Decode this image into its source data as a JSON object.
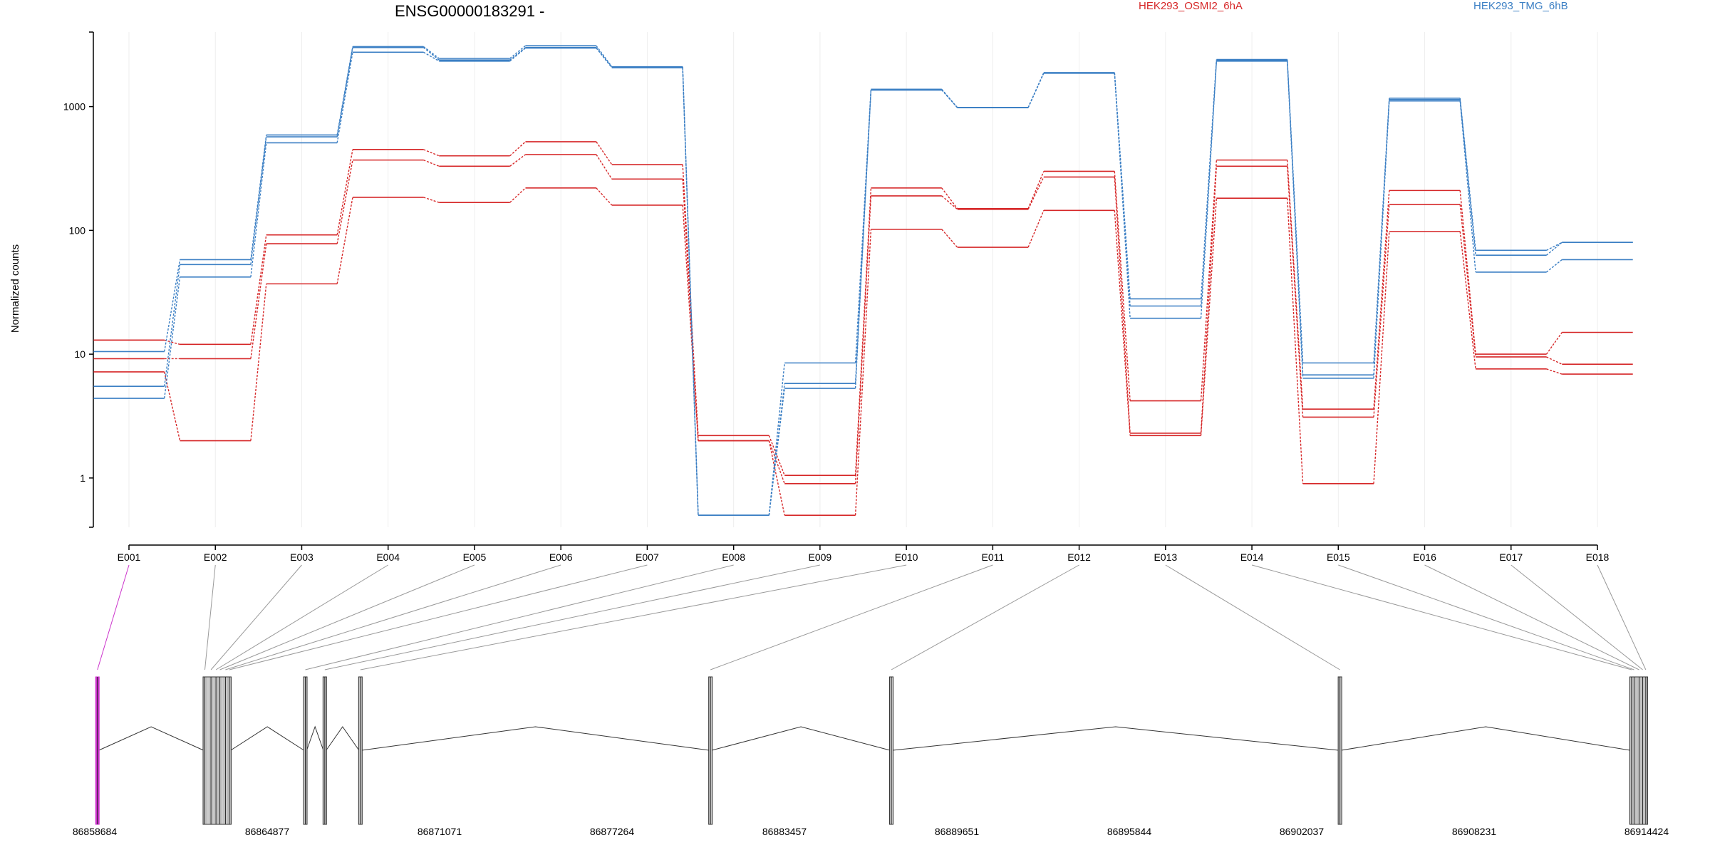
{
  "chart_data": {
    "type": "line",
    "title": "ENSG00000183291 -",
    "xlabel": "",
    "ylabel": "Normalized counts",
    "y_scale": "log",
    "ylim": [
      0.4,
      4000
    ],
    "y_ticks": [
      "1",
      "10",
      "100",
      "1000"
    ],
    "y_tick_values": [
      1,
      10,
      100,
      1000
    ],
    "grid": "vertical",
    "legend_placement": "top",
    "legend": [
      {
        "label": "HEK293_OSMI2_6hA",
        "color": "#d62728"
      },
      {
        "label": "HEK293_TMG_6hB",
        "color": "#3b7fc4"
      }
    ],
    "categories": [
      "E001",
      "E002",
      "E003",
      "E004",
      "E005",
      "E006",
      "E007",
      "E008",
      "E009",
      "E010",
      "E011",
      "E012",
      "E013",
      "E014",
      "E015",
      "E016",
      "E017",
      "E018"
    ],
    "series": [
      {
        "group": "red",
        "color": "#d62728",
        "values": [
          13,
          12,
          92,
          450,
          400,
          520,
          340,
          2.2,
          1.05,
          220,
          150,
          300,
          4.2,
          370,
          3.6,
          210,
          10,
          15
        ]
      },
      {
        "group": "red",
        "color": "#d62728",
        "values": [
          9.2,
          9.2,
          78,
          370,
          330,
          410,
          260,
          2.0,
          0.9,
          190,
          148,
          270,
          2.3,
          330,
          3.1,
          162,
          9.5,
          8.3
        ]
      },
      {
        "group": "red",
        "color": "#d62728",
        "values": [
          7.2,
          2.0,
          37,
          185,
          168,
          220,
          160,
          2.0,
          0.5,
          102,
          73,
          145,
          2.2,
          182,
          0.9,
          98,
          7.6,
          6.9
        ]
      },
      {
        "group": "blue",
        "color": "#3b7fc4",
        "values": [
          10.5,
          58,
          590,
          3050,
          2450,
          3100,
          2100,
          0.5,
          8.5,
          1380,
          980,
          1880,
          28,
          2400,
          8.5,
          1170,
          69,
          80
        ]
      },
      {
        "group": "blue",
        "color": "#3b7fc4",
        "values": [
          5.5,
          53,
          570,
          3000,
          2380,
          3000,
          2080,
          0.5,
          5.8,
          1370,
          985,
          1870,
          24.5,
          2360,
          6.8,
          1140,
          63,
          80
        ]
      },
      {
        "group": "blue",
        "color": "#3b7fc4",
        "values": [
          4.4,
          42,
          510,
          2750,
          2330,
          2970,
          2060,
          0.5,
          5.3,
          1360,
          980,
          1860,
          19.5,
          2330,
          6.4,
          1110,
          46,
          58
        ]
      }
    ],
    "gene_model": {
      "coordinate_labels": [
        "86858684",
        "86864877",
        "86871071",
        "86877264",
        "86883457",
        "86889651",
        "86895844",
        "86902037",
        "86908231",
        "86914424"
      ],
      "coordinate_range": [
        86858684,
        86914424
      ],
      "exon_positions": [
        86858780,
        86862640,
        86862860,
        86863040,
        86863180,
        86863380,
        86863520,
        86866250,
        86866950,
        86868230,
        86880810,
        86887310,
        86903430,
        86913910,
        86914000,
        86914180,
        86914310,
        86914420
      ],
      "highlight_exon": "E001",
      "highlight_color": "#cc33cc"
    }
  }
}
